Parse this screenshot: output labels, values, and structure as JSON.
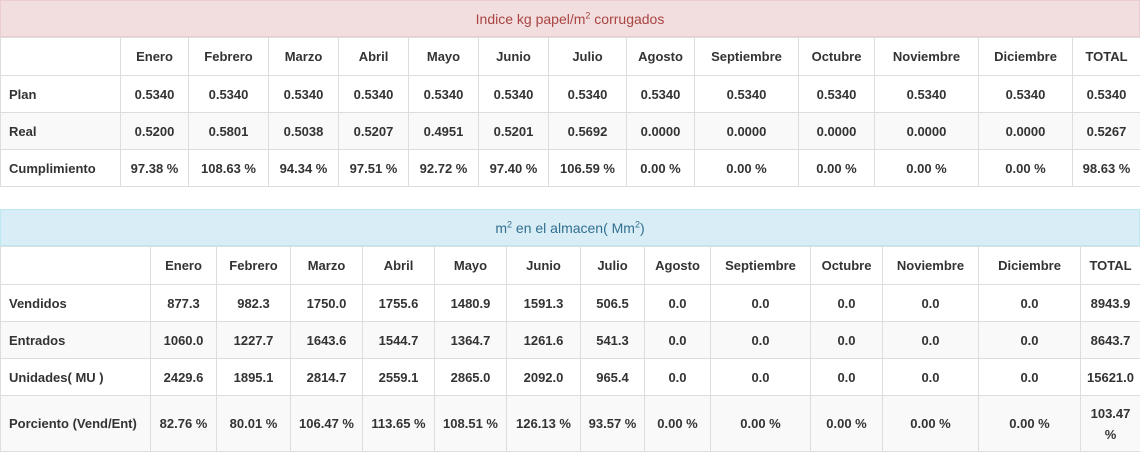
{
  "section1": {
    "title_pre": "Indice kg papel/m",
    "title_sup": "2",
    "title_post": " corrugados",
    "months": [
      "Enero",
      "Febrero",
      "Marzo",
      "Abril",
      "Mayo",
      "Junio",
      "Julio",
      "Agosto",
      "Septiembre",
      "Octubre",
      "Noviembre",
      "Diciembre",
      "TOTAL"
    ],
    "rows": [
      {
        "label": "Plan",
        "values": [
          "0.5340",
          "0.5340",
          "0.5340",
          "0.5340",
          "0.5340",
          "0.5340",
          "0.5340",
          "0.5340",
          "0.5340",
          "0.5340",
          "0.5340",
          "0.5340",
          "0.5340"
        ]
      },
      {
        "label": "Real",
        "values": [
          "0.5200",
          "0.5801",
          "0.5038",
          "0.5207",
          "0.4951",
          "0.5201",
          "0.5692",
          "0.0000",
          "0.0000",
          "0.0000",
          "0.0000",
          "0.0000",
          "0.5267"
        ]
      },
      {
        "label": "Cumplimiento",
        "values": [
          "97.38 %",
          "108.63 %",
          "94.34 %",
          "97.51 %",
          "92.72 %",
          "97.40 %",
          "106.59 %",
          "0.00 %",
          "0.00 %",
          "0.00 %",
          "0.00 %",
          "0.00 %",
          "98.63 %"
        ]
      }
    ]
  },
  "section2": {
    "title_pre": "m",
    "title_sup": "2",
    "title_mid": " en el almacen( Mm",
    "title_sup2": "2",
    "title_post": ")",
    "months": [
      "Enero",
      "Febrero",
      "Marzo",
      "Abril",
      "Mayo",
      "Junio",
      "Julio",
      "Agosto",
      "Septiembre",
      "Octubre",
      "Noviembre",
      "Diciembre",
      "TOTAL"
    ],
    "rows": [
      {
        "label": "Vendidos",
        "values": [
          "877.3",
          "982.3",
          "1750.0",
          "1755.6",
          "1480.9",
          "1591.3",
          "506.5",
          "0.0",
          "0.0",
          "0.0",
          "0.0",
          "0.0",
          "8943.9"
        ]
      },
      {
        "label": "Entrados",
        "values": [
          "1060.0",
          "1227.7",
          "1643.6",
          "1544.7",
          "1364.7",
          "1261.6",
          "541.3",
          "0.0",
          "0.0",
          "0.0",
          "0.0",
          "0.0",
          "8643.7"
        ]
      },
      {
        "label": "Unidades( MU )",
        "values": [
          "2429.6",
          "1895.1",
          "2814.7",
          "2559.1",
          "2865.0",
          "2092.0",
          "965.4",
          "0.0",
          "0.0",
          "0.0",
          "0.0",
          "0.0",
          "15621.0"
        ]
      },
      {
        "label": "Porciento (Vend/Ent)",
        "values": [
          "82.76 %",
          "80.01 %",
          "106.47 %",
          "113.65 %",
          "108.51 %",
          "126.13 %",
          "93.57 %",
          "0.00 %",
          "0.00 %",
          "0.00 %",
          "0.00 %",
          "0.00 %",
          "103.47 %"
        ]
      }
    ]
  }
}
